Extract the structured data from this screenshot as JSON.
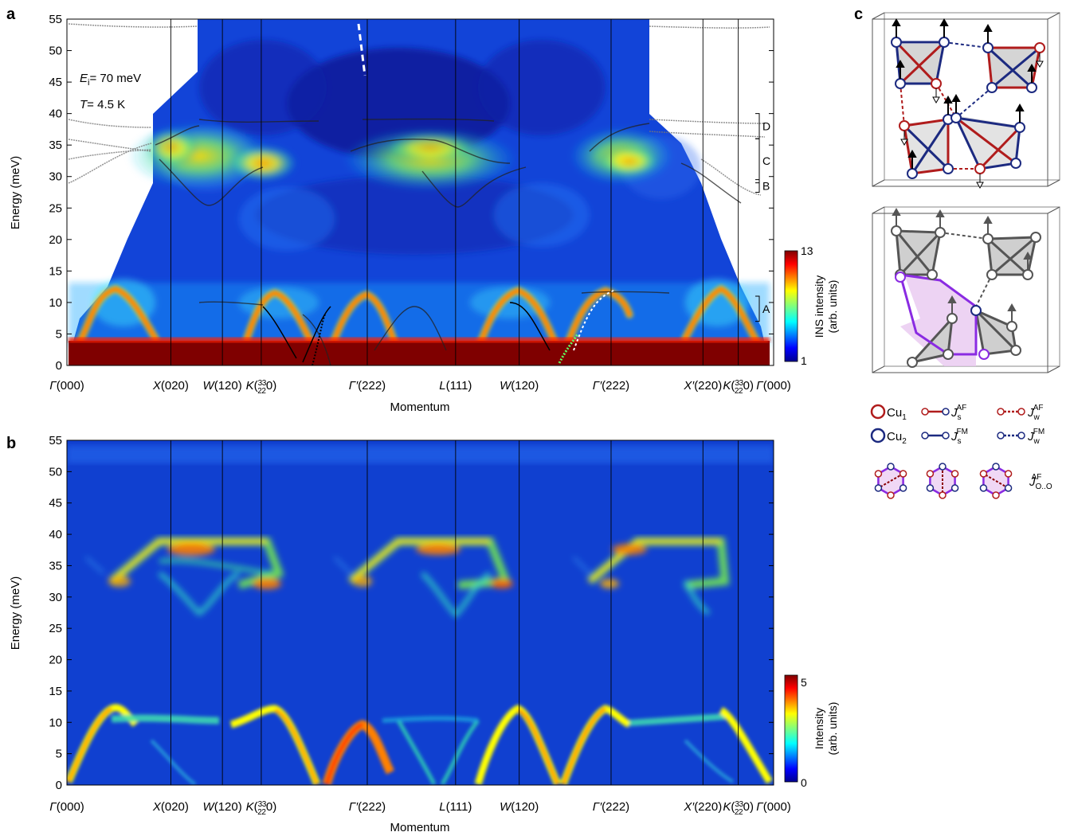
{
  "panels": {
    "a": "a",
    "b": "b",
    "c": "c"
  },
  "chart_data": [
    {
      "panel": "a",
      "type": "heatmap",
      "title": "",
      "xlabel": "Momentum",
      "ylabel": "Energy (meV)",
      "ylim": [
        0,
        55
      ],
      "y_ticks": [
        0,
        5,
        10,
        15,
        20,
        25,
        30,
        35,
        40,
        45,
        50,
        55
      ],
      "x_ticks": [
        {
          "pos": 0.0,
          "letter": "Γ",
          "index": "(000)"
        },
        {
          "pos": 0.147,
          "letter": "X",
          "index": "(020)"
        },
        {
          "pos": 0.22,
          "letter": "W",
          "index": "(120)"
        },
        {
          "pos": 0.275,
          "letter": "K",
          "index": "(",
          "frac": true,
          "tail": "0)"
        },
        {
          "pos": 0.425,
          "letter": "Γ′",
          "index": "(222)"
        },
        {
          "pos": 0.55,
          "letter": "L",
          "index": "(111)"
        },
        {
          "pos": 0.64,
          "letter": "W",
          "index": "(120)"
        },
        {
          "pos": 0.77,
          "letter": "Γ′",
          "index": "(222)"
        },
        {
          "pos": 0.9,
          "letter": "X′",
          "index": "(220)"
        },
        {
          "pos": 0.95,
          "letter": "K",
          "index": "(",
          "frac": true,
          "tail": "0)"
        },
        {
          "pos": 1.0,
          "letter": "Γ",
          "index": "(000)"
        }
      ],
      "annotations": {
        "ei_text": "E",
        "ei_sub": "i",
        "ei_value": "= 70 meV",
        "t_text": "T",
        "t_value": "= 4.5 K"
      },
      "bands": [
        {
          "label": "D",
          "range": [
            36,
            40
          ]
        },
        {
          "label": "C",
          "range": [
            29,
            36
          ]
        },
        {
          "label": "B",
          "range": [
            27.5,
            29.5
          ]
        },
        {
          "label": "A",
          "range": [
            7,
            11
          ]
        }
      ],
      "colorbar": {
        "label_line1": "INS intensity",
        "label_line2": "(arb. units)",
        "min": 1,
        "max": 13
      }
    },
    {
      "panel": "b",
      "type": "heatmap",
      "title": "",
      "xlabel": "Momentum",
      "ylabel": "Energy (meV)",
      "ylim": [
        0,
        55
      ],
      "y_ticks": [
        0,
        5,
        10,
        15,
        20,
        25,
        30,
        35,
        40,
        45,
        50,
        55
      ],
      "colorbar": {
        "label_line1": "Intensity",
        "label_line2": "(arb. units)",
        "min": 0,
        "max": 5
      }
    }
  ],
  "legend_c": {
    "cu1": "Cu",
    "cu1_sub": "1",
    "cu2": "Cu",
    "cu2_sub": "2",
    "j": "J",
    "js_af_sub": "s",
    "js_af_sup": "AF",
    "jw_af_sub": "w",
    "jw_af_sup": "AF",
    "js_fm_sub": "s",
    "js_fm_sup": "FM",
    "jw_fm_sub": "w",
    "jw_fm_sup": "FM",
    "joo_sub": "O..O",
    "joo_sup": "AF"
  },
  "colors": {
    "cu1": "#b01c1c",
    "cu2": "#1c2a80",
    "purple": "#8a2be2",
    "dark_red": "#7f0000",
    "bg_blue": "#1040d0"
  }
}
